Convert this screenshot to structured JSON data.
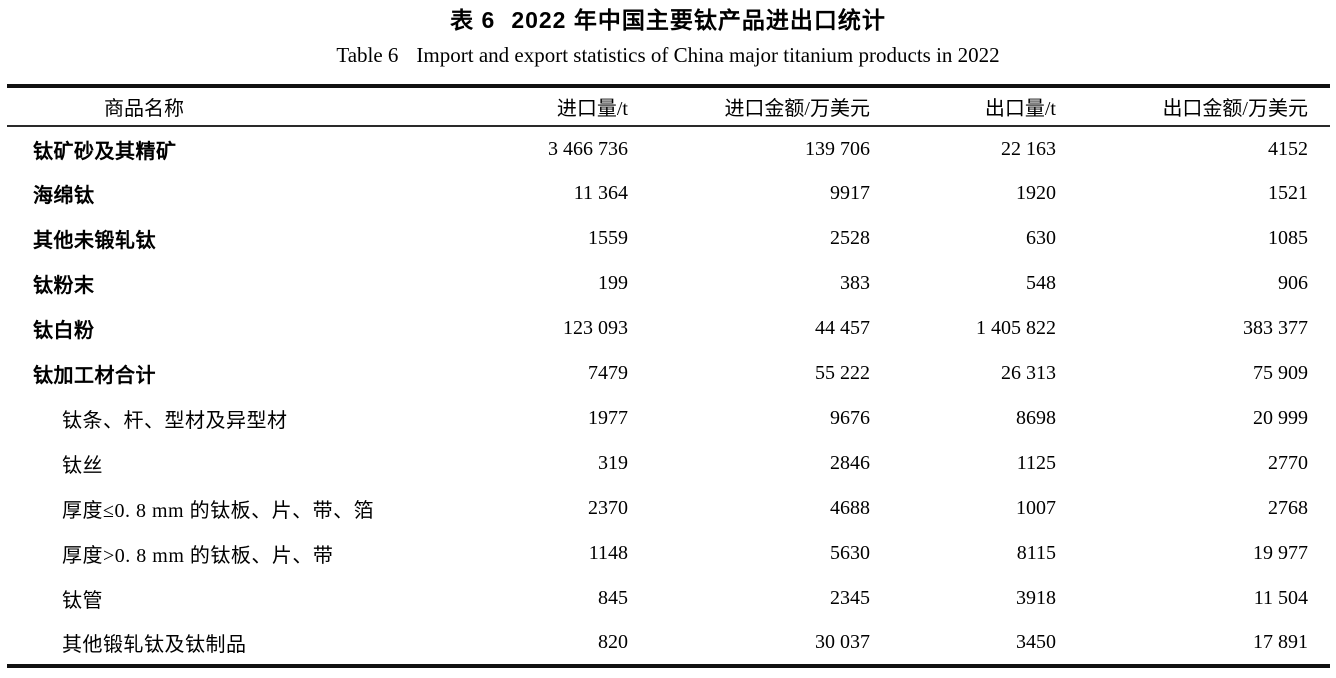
{
  "caption": {
    "title_prefix_cn": "表 6",
    "title_cn": "2022 年中国主要钛产品进出口统计",
    "title_prefix_en": "Table 6",
    "title_en": "Import and export statistics of China major titanium products in 2022"
  },
  "columns": {
    "name": "商品名称",
    "import_qty": "进口量/t",
    "import_value": "进口金额/万美元",
    "export_qty": "出口量/t",
    "export_value": "出口金额/万美元"
  },
  "chart_data": {
    "type": "table",
    "title": "表 6 2022 年中国主要钛产品进出口统计 / Table 6 Import and export statistics of China major titanium products in 2022",
    "columns": [
      "商品名称",
      "进口量/t",
      "进口金额/万美元",
      "出口量/t",
      "出口金额/万美元"
    ],
    "rows": [
      {
        "name": "钛矿砂及其精矿",
        "level": "main",
        "import_qty": "3 466 736",
        "import_value": "139 706",
        "export_qty": "22 163",
        "export_value": "4152"
      },
      {
        "name": "海绵钛",
        "level": "main",
        "import_qty": "11 364",
        "import_value": "9917",
        "export_qty": "1920",
        "export_value": "1521"
      },
      {
        "name": "其他未锻轧钛",
        "level": "main",
        "import_qty": "1559",
        "import_value": "2528",
        "export_qty": "630",
        "export_value": "1085"
      },
      {
        "name": "钛粉末",
        "level": "main",
        "import_qty": "199",
        "import_value": "383",
        "export_qty": "548",
        "export_value": "906"
      },
      {
        "name": "钛白粉",
        "level": "main",
        "import_qty": "123 093",
        "import_value": "44 457",
        "export_qty": "1 405 822",
        "export_value": "383 377"
      },
      {
        "name": "钛加工材合计",
        "level": "main",
        "import_qty": "7479",
        "import_value": "55 222",
        "export_qty": "26 313",
        "export_value": "75 909"
      },
      {
        "name": "钛条、杆、型材及异型材",
        "level": "sub",
        "import_qty": "1977",
        "import_value": "9676",
        "export_qty": "8698",
        "export_value": "20 999"
      },
      {
        "name": "钛丝",
        "level": "sub",
        "import_qty": "319",
        "import_value": "2846",
        "export_qty": "1125",
        "export_value": "2770"
      },
      {
        "name": "厚度≤0. 8 mm 的钛板、片、带、箔",
        "level": "sub",
        "import_qty": "2370",
        "import_value": "4688",
        "export_qty": "1007",
        "export_value": "2768"
      },
      {
        "name": "厚度>0. 8 mm 的钛板、片、带",
        "level": "sub",
        "import_qty": "1148",
        "import_value": "5630",
        "export_qty": "8115",
        "export_value": "19 977"
      },
      {
        "name": "钛管",
        "level": "sub",
        "import_qty": "845",
        "import_value": "2345",
        "export_qty": "3918",
        "export_value": "11 504"
      },
      {
        "name": "其他锻轧钛及钛制品",
        "level": "sub",
        "import_qty": "820",
        "import_value": "30 037",
        "export_qty": "3450",
        "export_value": "17 891"
      }
    ]
  }
}
